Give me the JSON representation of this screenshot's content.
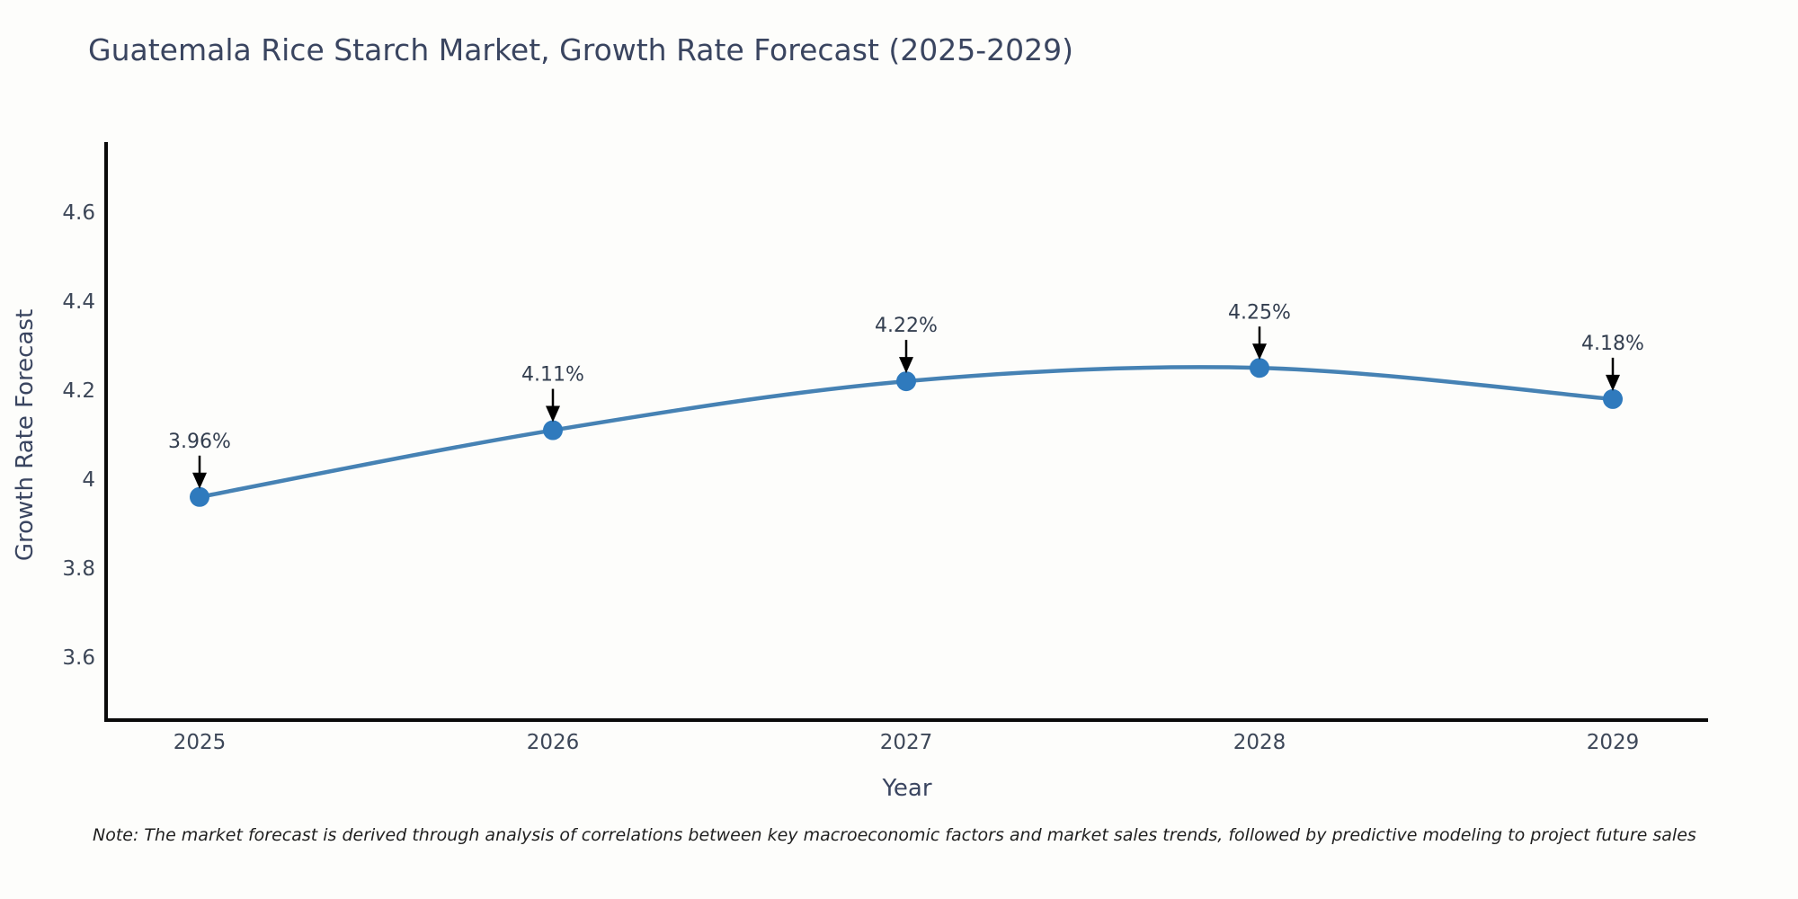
{
  "title": "Guatemala Rice Starch Market, Growth Rate Forecast (2025-2029)",
  "note": "Note: The market forecast is derived through analysis of correlations between key macroeconomic factors and market sales trends, followed by predictive modeling to project future sales",
  "chart_data": {
    "type": "line",
    "title": "Guatemala Rice Starch Market, Growth Rate Forecast (2025-2029)",
    "xlabel": "Year",
    "ylabel": "Growth Rate Forecast",
    "categories": [
      "2025",
      "2026",
      "2027",
      "2028",
      "2029"
    ],
    "series": [
      {
        "name": "Growth Rate Forecast",
        "values": [
          3.96,
          4.11,
          4.22,
          4.25,
          4.18
        ]
      }
    ],
    "point_labels": [
      "3.96%",
      "4.11%",
      "4.22%",
      "4.25%",
      "4.18%"
    ],
    "ytick_values": [
      4.6,
      4.4,
      4.2,
      4.0,
      3.8,
      3.6
    ],
    "ytick_labels": [
      "4.6",
      "4.4",
      "4.2",
      "4",
      "3.8",
      "3.6"
    ],
    "ylim": [
      3.47,
      4.76
    ],
    "grid": false,
    "legend": "none",
    "annotations": "value labels with black arrows pointing to each marker",
    "colors": {
      "line": "#4682b4",
      "marker": "#2f7abd",
      "arrow": "#000000",
      "axis": "#0a0a0a",
      "title_text": "#3a4560",
      "tick_text": "#3d4758",
      "note_text": "#1f1f1f",
      "background": "#fdfdfb"
    }
  }
}
